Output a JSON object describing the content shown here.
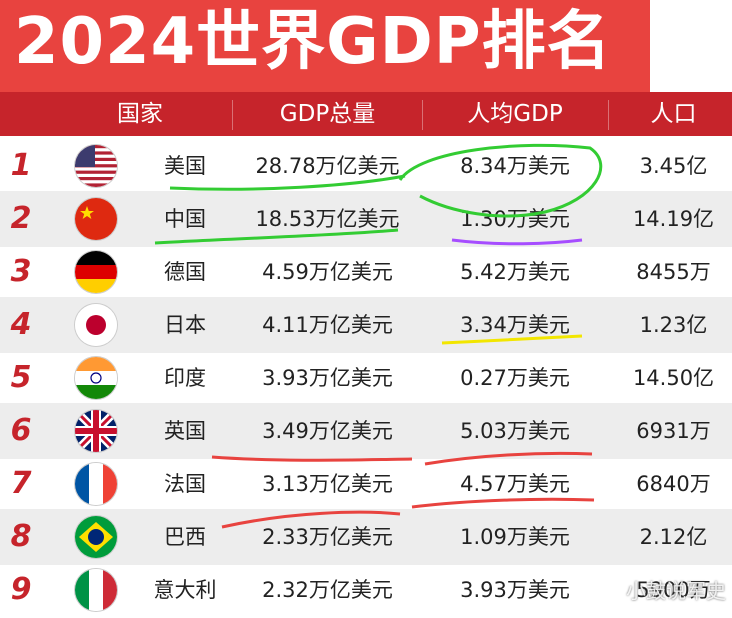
{
  "title": "2024世界GDP排名",
  "headers": {
    "country": "国家",
    "gdp": "GDP总量",
    "per_capita": "人均GDP",
    "population": "人口"
  },
  "rows": [
    {
      "rank": "1",
      "flag": "usa-flag-icon",
      "country": "美国",
      "gdp": "28.78万亿美元",
      "per_capita": "8.34万美元",
      "population": "3.45亿"
    },
    {
      "rank": "2",
      "flag": "china-flag-icon",
      "country": "中国",
      "gdp": "18.53万亿美元",
      "per_capita": "1.30万美元",
      "population": "14.19亿"
    },
    {
      "rank": "3",
      "flag": "germany-flag-icon",
      "country": "德国",
      "gdp": "4.59万亿美元",
      "per_capita": "5.42万美元",
      "population": "8455万"
    },
    {
      "rank": "4",
      "flag": "japan-flag-icon",
      "country": "日本",
      "gdp": "4.11万亿美元",
      "per_capita": "3.34万美元",
      "population": "1.23亿"
    },
    {
      "rank": "5",
      "flag": "india-flag-icon",
      "country": "印度",
      "gdp": "3.93万亿美元",
      "per_capita": "0.27万美元",
      "population": "14.50亿"
    },
    {
      "rank": "6",
      "flag": "uk-flag-icon",
      "country": "英国",
      "gdp": "3.49万亿美元",
      "per_capita": "5.03万美元",
      "population": "6931万"
    },
    {
      "rank": "7",
      "flag": "france-flag-icon",
      "country": "法国",
      "gdp": "3.13万亿美元",
      "per_capita": "4.57万美元",
      "population": "6840万"
    },
    {
      "rank": "8",
      "flag": "brazil-flag-icon",
      "country": "巴西",
      "gdp": "2.33万亿美元",
      "per_capita": "1.09万美元",
      "population": "2.12亿"
    },
    {
      "rank": "9",
      "flag": "italy-flag-icon",
      "country": "意大利",
      "gdp": "2.32万亿美元",
      "per_capita": "3.93万美元",
      "population": "5900万"
    }
  ],
  "watermark": "小鼓说军史",
  "colors": {
    "banner": "#e8433f",
    "header": "#c6242b",
    "rank": "#c6242b",
    "alt_row": "#ededed"
  }
}
